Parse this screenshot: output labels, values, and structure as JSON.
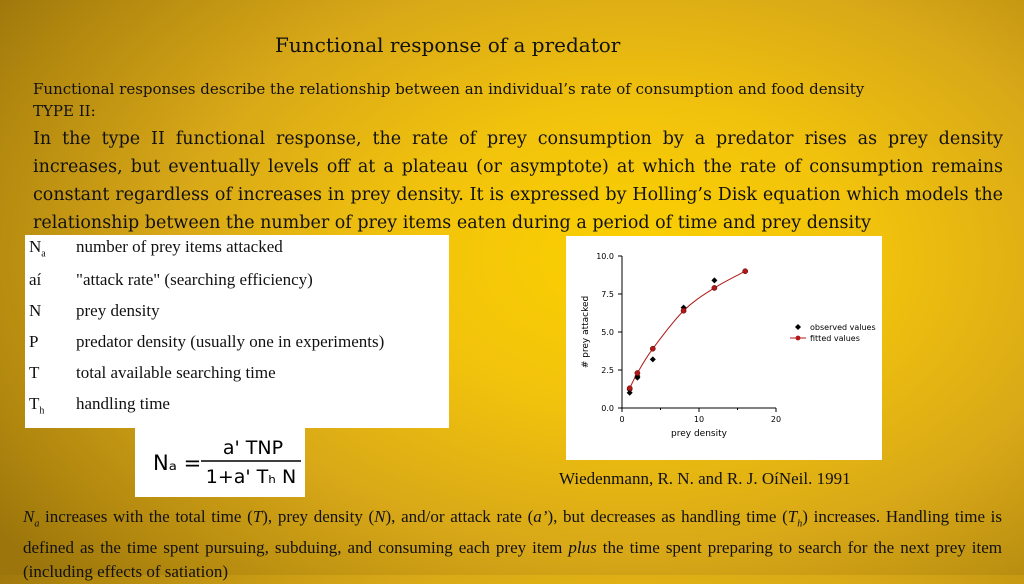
{
  "slide": {
    "title": "Functional response of a predator",
    "subtitle": "Functional responses describe the relationship between an individual’s rate of consumption and food density",
    "type_label": "TYPE II:",
    "paragraph": "In the type II functional response, the rate of prey consumption by a predator rises as prey density increases, but eventually levels off at a plateau (or asymptote) at which the rate of consumption remains constant regardless of increases in prey density. It is expressed by Holling’s Disk equation which models the relationship between the number of prey items eaten during a period of time and prey density"
  },
  "variables": [
    {
      "symbol": "N",
      "sub": "a",
      "desc": "number of prey items attacked"
    },
    {
      "symbol": "aí",
      "sub": "",
      "desc": "\"attack rate\" (searching efficiency)"
    },
    {
      "symbol": "N",
      "sub": "",
      "desc": "prey density"
    },
    {
      "symbol": "P",
      "sub": "",
      "desc": "predator density (usually one in experiments)"
    },
    {
      "symbol": "T",
      "sub": "",
      "desc": "total available searching time"
    },
    {
      "symbol": "T",
      "sub": "h",
      "desc": "handling time"
    }
  ],
  "formula": {
    "lhs": "Nₐ =",
    "numerator": "a' TNP",
    "denominator": "1+a' Tₕ N"
  },
  "chart_data": {
    "type": "scatter",
    "xlabel": "prey density",
    "ylabel": "# prey attacked",
    "xlim": [
      0,
      20
    ],
    "ylim": [
      0,
      10
    ],
    "xticks": [
      0,
      10,
      20
    ],
    "yticks": [
      "0.0",
      "2.5",
      "5.0",
      "7.5",
      "10.0"
    ],
    "legend_position": "right",
    "series": [
      {
        "name": "observed values",
        "marker": "diamond",
        "color": "#000000",
        "x": [
          1,
          1,
          2,
          2,
          4,
          8,
          12
        ],
        "y": [
          1.0,
          1.2,
          2.0,
          2.1,
          3.2,
          6.6,
          8.4
        ]
      },
      {
        "name": "fitted values",
        "marker": "circle",
        "color": "#b01818",
        "x": [
          1,
          2,
          4,
          8,
          12,
          16
        ],
        "y": [
          1.3,
          2.3,
          3.9,
          6.4,
          7.9,
          9.0
        ]
      }
    ]
  },
  "citation": "Wiedenmann, R. N. and R. J. OíNeil. 1991",
  "bottom": {
    "na_symbol": "N",
    "na_sub": "a",
    "part1": " increases with the total time (",
    "T": "T",
    "part2": "), prey density (",
    "N": "N",
    "part3": "), and/or attack rate (",
    "a": "a’",
    "part4": "), but decreases as handling time (",
    "th": "T",
    "th_sub": "h",
    "part5": ") increases. Handling time is defined as the time spent pursuing, subduing, and consuming each prey item ",
    "plus": "plus",
    "part6": " the time spent preparing to search for the next prey item (including effects of satiation)"
  }
}
